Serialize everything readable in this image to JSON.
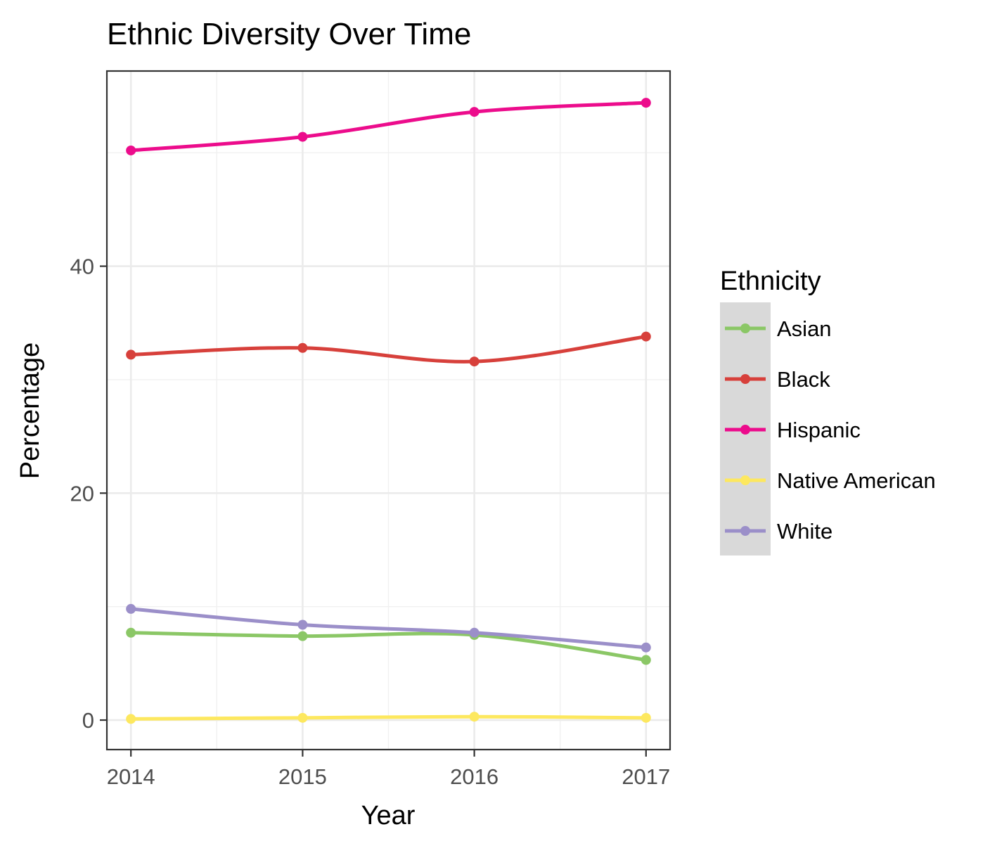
{
  "chart_data": {
    "type": "line",
    "title": "Ethnic Diversity Over Time",
    "xlabel": "Year",
    "ylabel": "Percentage",
    "x": [
      2014,
      2015,
      2016,
      2017
    ],
    "xlim": [
      2013.86,
      2017.14
    ],
    "ylim": [
      -2.6,
      57.2
    ],
    "y_ticks": [
      0,
      20,
      40
    ],
    "x_ticks": [
      2014,
      2015,
      2016,
      2017
    ],
    "grid": true,
    "legend": {
      "title": "Ethnicity",
      "position": "right"
    },
    "series": [
      {
        "name": "Asian",
        "color": "#8bc766",
        "values": [
          7.7,
          7.4,
          7.5,
          5.3
        ]
      },
      {
        "name": "Black",
        "color": "#d7403b",
        "values": [
          32.2,
          32.8,
          31.6,
          33.8
        ]
      },
      {
        "name": "Hispanic",
        "color": "#ec0c8c",
        "values": [
          50.2,
          51.4,
          53.6,
          54.4
        ]
      },
      {
        "name": "Native American",
        "color": "#fde85f",
        "values": [
          0.1,
          0.2,
          0.3,
          0.2
        ]
      },
      {
        "name": "White",
        "color": "#9b8fc9",
        "values": [
          9.8,
          8.4,
          7.7,
          6.4
        ]
      }
    ]
  }
}
